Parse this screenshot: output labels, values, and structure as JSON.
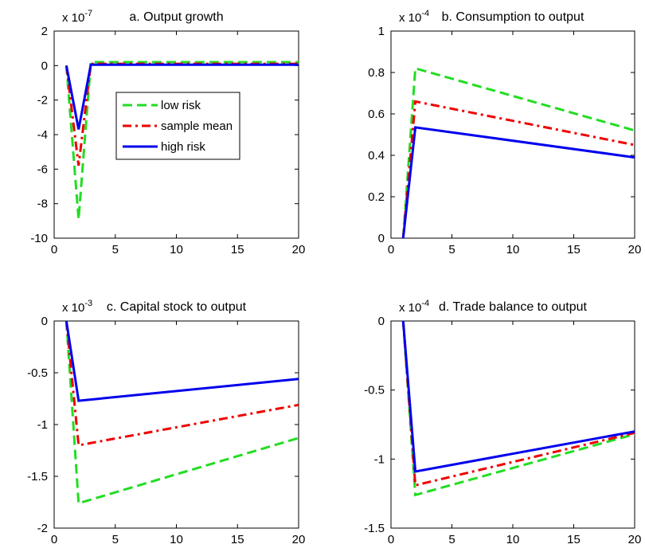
{
  "chart_data": [
    {
      "type": "line",
      "title": "a. Output growth",
      "exponent": {
        "base": "x 10",
        "power": "-7"
      },
      "xlim": [
        0,
        20
      ],
      "ylim": [
        -10,
        2
      ],
      "xticks": [
        0,
        5,
        10,
        15,
        20
      ],
      "yticks": [
        2,
        0,
        -2,
        -4,
        -6,
        -8,
        -10
      ],
      "legend": "inside-center",
      "series": [
        {
          "name": "low risk",
          "color": "#22dd22",
          "dash": "dashed",
          "x": [
            1,
            2,
            3,
            20
          ],
          "y": [
            0,
            -8.9,
            0.2,
            0.2
          ]
        },
        {
          "name": "sample mean",
          "color": "#ee0000",
          "dash": "dashdot",
          "x": [
            1,
            2,
            3,
            20
          ],
          "y": [
            0,
            -5.8,
            0.1,
            0.1
          ]
        },
        {
          "name": "high risk",
          "color": "#0000ee",
          "dash": "solid",
          "x": [
            1,
            2,
            3,
            20
          ],
          "y": [
            0,
            -3.7,
            0.05,
            0.05
          ]
        }
      ]
    },
    {
      "type": "line",
      "title": "b. Consumption to output",
      "exponent": {
        "base": "x 10",
        "power": "-4"
      },
      "xlim": [
        0,
        20
      ],
      "ylim": [
        0,
        1
      ],
      "xticks": [
        0,
        5,
        10,
        15,
        20
      ],
      "yticks": [
        1,
        0.8,
        0.6,
        0.4,
        0.2,
        0
      ],
      "series": [
        {
          "color": "#22dd22",
          "dash": "dashed",
          "x": [
            1,
            2,
            20
          ],
          "y": [
            0,
            0.82,
            0.52
          ]
        },
        {
          "color": "#ee0000",
          "dash": "dashdot",
          "x": [
            1,
            2,
            20
          ],
          "y": [
            0,
            0.66,
            0.45
          ]
        },
        {
          "color": "#0000ee",
          "dash": "solid",
          "x": [
            1,
            2,
            20
          ],
          "y": [
            0,
            0.535,
            0.39
          ]
        }
      ]
    },
    {
      "type": "line",
      "title": "c. Capital stock to output",
      "exponent": {
        "base": "x 10",
        "power": "-3"
      },
      "xlim": [
        0,
        20
      ],
      "ylim": [
        -2,
        0
      ],
      "xticks": [
        0,
        5,
        10,
        15,
        20
      ],
      "yticks": [
        0,
        -0.5,
        -1,
        -1.5,
        -2
      ],
      "series": [
        {
          "color": "#22dd22",
          "dash": "dashed",
          "x": [
            1,
            2,
            20
          ],
          "y": [
            0,
            -1.76,
            -1.13
          ]
        },
        {
          "color": "#ee0000",
          "dash": "dashdot",
          "x": [
            1,
            2,
            20
          ],
          "y": [
            0,
            -1.2,
            -0.81
          ]
        },
        {
          "color": "#0000ee",
          "dash": "solid",
          "x": [
            1,
            2,
            20
          ],
          "y": [
            0,
            -0.77,
            -0.56
          ]
        }
      ]
    },
    {
      "type": "line",
      "title": "d. Trade balance to output",
      "exponent": {
        "base": "x 10",
        "power": "-4"
      },
      "xlim": [
        0,
        20
      ],
      "ylim": [
        -1.5,
        0
      ],
      "xticks": [
        0,
        5,
        10,
        15,
        20
      ],
      "yticks": [
        0,
        -0.5,
        -1,
        -1.5
      ],
      "series": [
        {
          "color": "#22dd22",
          "dash": "dashed",
          "x": [
            1,
            2,
            20
          ],
          "y": [
            0,
            -1.26,
            -0.82
          ]
        },
        {
          "color": "#ee0000",
          "dash": "dashdot",
          "x": [
            1,
            2,
            20
          ],
          "y": [
            0,
            -1.19,
            -0.81
          ]
        },
        {
          "color": "#0000ee",
          "dash": "solid",
          "x": [
            1,
            2,
            20
          ],
          "y": [
            0,
            -1.09,
            -0.8
          ]
        }
      ]
    }
  ]
}
